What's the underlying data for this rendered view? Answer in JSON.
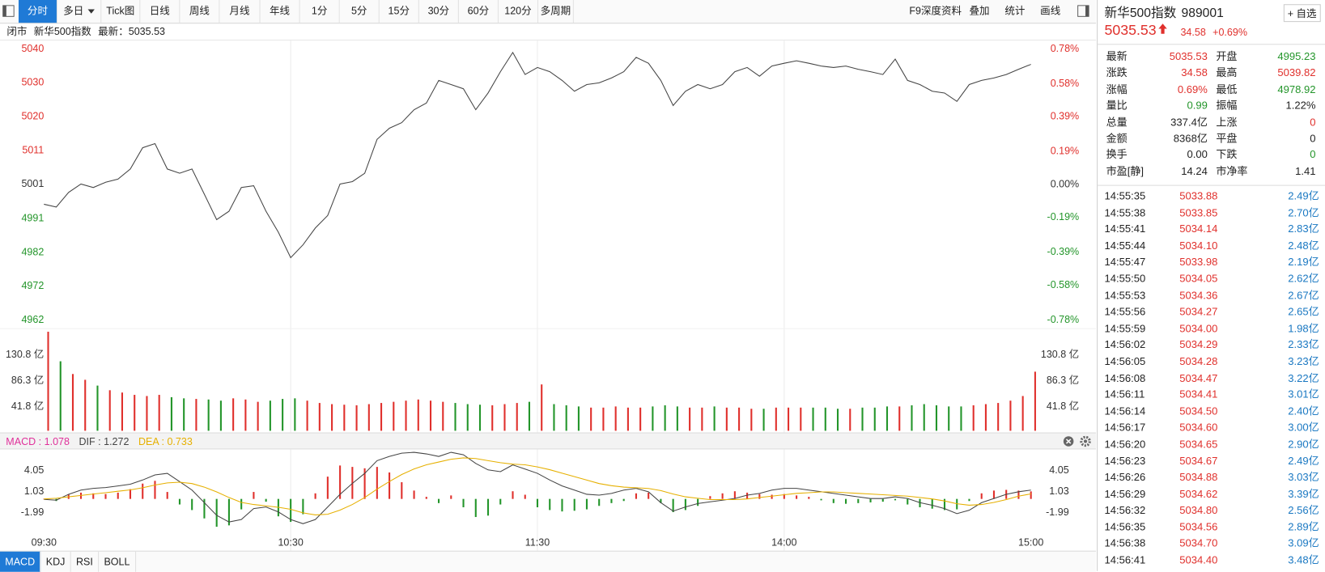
{
  "toolbar": {
    "left": [
      "分时",
      "多日",
      "Tick图",
      "日线",
      "周线",
      "月线",
      "年线",
      "1分",
      "5分",
      "15分",
      "30分",
      "60分",
      "120分",
      "多周期"
    ],
    "right": [
      "F9深度资料",
      "叠加",
      "统计",
      "画线"
    ]
  },
  "status": {
    "state": "闭市",
    "name": "新华500指数",
    "latest": "最新：5035.53"
  },
  "chart_data": [
    {
      "type": "line",
      "color": "#444444",
      "values": [
        4995.3,
        4994.5,
        4998.7,
        5001.1,
        5000.1,
        5001.6,
        5002.5,
        5005.4,
        5011.5,
        5012.7,
        5005.4,
        5004.2,
        5005.4,
        4998.2,
        4990.9,
        4993.3,
        5000.1,
        5000.6,
        4993.3,
        4987.3,
        4980.0,
        4983.7,
        4988.5,
        4992.1,
        5001.1,
        5001.8,
        5004.2,
        5013.9,
        5017.1,
        5018.7,
        5022.4,
        5024.3,
        5030.8,
        5029.6,
        5028.4,
        5022.4,
        5027.2,
        5033.3,
        5038.8,
        5032.5,
        5034.5,
        5033.3,
        5030.8,
        5027.7,
        5029.6,
        5030.1,
        5031.5,
        5033.3,
        5037.4,
        5035.7,
        5030.8,
        5023.6,
        5027.7,
        5029.6,
        5028.4,
        5029.6,
        5033.3,
        5034.5,
        5032.0,
        5034.9,
        5035.7,
        5036.4,
        5035.7,
        5034.9,
        5034.5,
        5034.9,
        5034.0,
        5033.3,
        5032.5,
        5036.9,
        5030.8,
        5029.6,
        5027.7,
        5027.2,
        5024.8,
        5029.6,
        5030.8,
        5031.5,
        5032.5,
        5034.0,
        5035.4
      ],
      "ylim": [
        4962.1,
        5039.8
      ],
      "yticks": [
        {
          "value": 5039.8,
          "label": "5040"
        },
        {
          "value": 5030.1,
          "label": "5030"
        },
        {
          "value": 5020.4,
          "label": "5020"
        },
        {
          "value": 5010.7,
          "label": "5011"
        },
        {
          "value": 5001.0,
          "label": "5001"
        },
        {
          "value": 4991.2,
          "label": "4991"
        },
        {
          "value": 4981.5,
          "label": "4982"
        },
        {
          "value": 4971.8,
          "label": "4972"
        },
        {
          "value": 4962.1,
          "label": "4962"
        }
      ],
      "y2lim": [
        -0.78,
        0.78
      ],
      "y2ticks": [
        {
          "value": 0.78,
          "label": "0.78%"
        },
        {
          "value": 0.58,
          "label": "0.58%"
        },
        {
          "value": 0.39,
          "label": "0.39%"
        },
        {
          "value": 0.19,
          "label": "0.19%"
        },
        {
          "value": 0,
          "label": "0.00%"
        },
        {
          "value": -0.19,
          "label": "-0.19%"
        },
        {
          "value": -0.39,
          "label": "-0.39%"
        },
        {
          "value": -0.58,
          "label": "-0.58%"
        },
        {
          "value": -0.78,
          "label": "-0.78%"
        }
      ],
      "up_color": "#e0302c",
      "down_color": "#23952a",
      "flat_color": "#333333"
    },
    {
      "type": "bar",
      "values": [
        171,
        120,
        98,
        88,
        78,
        70,
        66,
        62,
        60,
        62,
        58,
        56,
        55,
        54,
        52,
        56,
        54,
        50,
        52,
        55,
        56,
        52,
        48,
        46,
        45,
        44,
        46,
        48,
        50,
        52,
        54,
        52,
        50,
        48,
        46,
        45,
        44,
        46,
        48,
        50,
        80,
        46,
        44,
        42,
        40,
        40,
        42,
        40,
        40,
        42,
        44,
        42,
        40,
        40,
        42,
        40,
        40,
        38,
        38,
        40,
        40,
        40,
        40,
        40,
        38,
        38,
        40,
        40,
        42,
        42,
        44,
        46,
        44,
        42,
        42,
        44,
        46,
        48,
        52,
        60,
        102
      ],
      "ylim": [
        0,
        175
      ],
      "yticks": [
        {
          "value": 130.8,
          "label": "130.8 亿"
        },
        {
          "value": 86.3,
          "label": "86.3 亿"
        },
        {
          "value": 41.8,
          "label": "41.8 亿"
        }
      ],
      "up_color": "#e0302c",
      "down_color": "#23952a"
    },
    {
      "type": "combo",
      "xlim": [
        0,
        80
      ],
      "xticks": [
        {
          "value": 0,
          "label": "09:30"
        },
        {
          "value": 20,
          "label": "10:30"
        },
        {
          "value": 40,
          "label": "11:30"
        },
        {
          "value": 60,
          "label": "14:00"
        },
        {
          "value": 80,
          "label": "15:00"
        }
      ],
      "grid": true,
      "ylim": [
        -7.2,
        7.0
      ],
      "yticks": [
        4.05,
        1.03,
        -1.99
      ],
      "up_color": "#e0302c",
      "down_color": "#23952a",
      "series": [
        {
          "name": "MACD : 1.078",
          "color": "#e0309a",
          "style": "bar",
          "values": [
            0,
            -0.3,
            0.6,
            0.9,
            0.8,
            0.7,
            0.9,
            1.4,
            2.2,
            2.6,
            1.0,
            -0.8,
            -1.6,
            -2.8,
            -4.0,
            -3.8,
            -1.5,
            1.0,
            -0.4,
            -2.5,
            -3.3,
            -2.2,
            0.8,
            3.2,
            4.8,
            4.6,
            4.4,
            4.6,
            3.8,
            2.4,
            1.2,
            0.3,
            -0.6,
            0.5,
            -1.2,
            -2.6,
            -2.4,
            -0.8,
            1.1,
            0.6,
            -1.2,
            -1.6,
            -1.8,
            -1.7,
            -1.5,
            -1.0,
            -0.6,
            -0.3,
            0.8,
            0.9,
            -0.6,
            -1.9,
            -1.6,
            -1.0,
            0.4,
            0.8,
            1.1,
            0.9,
            0.7,
            0.6,
            0.7,
            0.5,
            0.3,
            -0.2,
            -0.6,
            -0.7,
            -0.6,
            -0.5,
            -0.4,
            -0.2,
            -0.8,
            -1.2,
            -1.4,
            -1.6,
            -1.5,
            -0.3,
            0.8,
            1.2,
            1.3,
            1.2,
            1.08
          ]
        },
        {
          "name": "DIF : 1.272",
          "color": "#444444",
          "style": "line",
          "values": [
            -0.06,
            -0.18,
            0.66,
            1.27,
            1.51,
            1.63,
            1.87,
            2.11,
            2.72,
            3.44,
            3.68,
            2.48,
            1.27,
            -0.54,
            -2.36,
            -3.32,
            -2.96,
            -1.39,
            -1.15,
            -1.87,
            -2.96,
            -3.56,
            -2.96,
            -1.15,
            0.66,
            2.23,
            3.68,
            5.5,
            6.1,
            6.58,
            6.7,
            6.46,
            6.1,
            6.7,
            6.34,
            5.1,
            4.17,
            3.92,
            4.89,
            4.29,
            3.68,
            2.72,
            1.87,
            1.27,
            0.66,
            0.54,
            0.79,
            1.27,
            1.51,
            1.03,
            -0.54,
            -1.75,
            -1.15,
            -0.66,
            -0.42,
            -0.18,
            0.06,
            0.54,
            0.79,
            1.27,
            1.51,
            1.51,
            1.27,
            1.03,
            0.79,
            0.54,
            0.3,
            0.06,
            0.06,
            0.3,
            0.06,
            -0.54,
            -0.91,
            -1.39,
            -2.11,
            -1.63,
            -0.54,
            0.06,
            0.66,
            1.03,
            1.27
          ]
        },
        {
          "name": "DEA : 0.733",
          "color": "#e6b000",
          "style": "line",
          "values": [
            0,
            0.1,
            0.3,
            0.5,
            0.7,
            0.9,
            1.1,
            1.3,
            1.6,
            2.0,
            2.3,
            2.4,
            2.2,
            1.7,
            1.0,
            0.2,
            -0.5,
            -0.8,
            -1.0,
            -1.2,
            -1.5,
            -2.0,
            -2.3,
            -2.2,
            -1.6,
            -0.8,
            0.2,
            1.4,
            2.5,
            3.5,
            4.3,
            4.9,
            5.3,
            5.7,
            5.9,
            5.8,
            5.5,
            5.2,
            5.0,
            4.9,
            4.6,
            4.2,
            3.7,
            3.2,
            2.7,
            2.2,
            1.9,
            1.7,
            1.6,
            1.5,
            1.2,
            0.7,
            0.3,
            0.1,
            -0.1,
            -0.1,
            -0.1,
            0.0,
            0.2,
            0.4,
            0.6,
            0.8,
            0.9,
            1.0,
            1.0,
            0.9,
            0.8,
            0.7,
            0.6,
            0.5,
            0.4,
            0.2,
            0.0,
            -0.3,
            -0.7,
            -0.9,
            -0.8,
            -0.5,
            -0.1,
            0.4,
            0.73
          ]
        }
      ]
    }
  ],
  "indicator_tabs": [
    "MACD",
    "KDJ",
    "RSI",
    "BOLL"
  ],
  "quote": {
    "name": "新华500指数",
    "code": "989001",
    "add": "+ 自选",
    "price": "5035.53",
    "change": "34.58",
    "percent": "+0.69%",
    "color": "#e0302c"
  },
  "stats": [
    [
      {
        "label": "最新",
        "value": "5035.53",
        "color": "#e0302c"
      },
      {
        "label": "开盘",
        "value": "4995.23",
        "color": "#23952a"
      }
    ],
    [
      {
        "label": "涨跌",
        "value": "34.58",
        "color": "#e0302c"
      },
      {
        "label": "最高",
        "value": "5039.82",
        "color": "#e0302c"
      }
    ],
    [
      {
        "label": "涨幅",
        "value": "0.69%",
        "color": "#e0302c"
      },
      {
        "label": "最低",
        "value": "4978.92",
        "color": "#23952a"
      }
    ],
    [
      {
        "label": "量比",
        "value": "0.99",
        "color": "#23952a"
      },
      {
        "label": "振幅",
        "value": "1.22%",
        "color": "#222222"
      }
    ],
    [
      {
        "label": "总量",
        "value": "337.4亿",
        "color": "#222222"
      },
      {
        "label": "上涨",
        "value": "0",
        "color": "#e0302c"
      }
    ],
    [
      {
        "label": "金额",
        "value": "8368亿",
        "color": "#222222"
      },
      {
        "label": "平盘",
        "value": "0",
        "color": "#222222"
      }
    ],
    [
      {
        "label": "换手",
        "value": "0.00",
        "color": "#222222"
      },
      {
        "label": "下跌",
        "value": "0",
        "color": "#23952a"
      }
    ],
    [
      {
        "label": "市盈[静]",
        "value": "14.24",
        "color": "#222222"
      },
      {
        "label": "市净率",
        "value": "1.41",
        "color": "#222222"
      }
    ]
  ],
  "trades": {
    "price_color": "#e0302c",
    "amount_color": "#1a78c2",
    "rows": [
      [
        "14:55:35",
        "5033.88",
        "2.49亿"
      ],
      [
        "14:55:38",
        "5033.85",
        "2.70亿"
      ],
      [
        "14:55:41",
        "5034.14",
        "2.83亿"
      ],
      [
        "14:55:44",
        "5034.10",
        "2.48亿"
      ],
      [
        "14:55:47",
        "5033.98",
        "2.19亿"
      ],
      [
        "14:55:50",
        "5034.05",
        "2.62亿"
      ],
      [
        "14:55:53",
        "5034.36",
        "2.67亿"
      ],
      [
        "14:55:56",
        "5034.27",
        "2.65亿"
      ],
      [
        "14:55:59",
        "5034.00",
        "1.98亿"
      ],
      [
        "14:56:02",
        "5034.29",
        "2.33亿"
      ],
      [
        "14:56:05",
        "5034.28",
        "3.23亿"
      ],
      [
        "14:56:08",
        "5034.47",
        "3.22亿"
      ],
      [
        "14:56:11",
        "5034.41",
        "3.01亿"
      ],
      [
        "14:56:14",
        "5034.50",
        "2.40亿"
      ],
      [
        "14:56:17",
        "5034.60",
        "3.00亿"
      ],
      [
        "14:56:20",
        "5034.65",
        "2.90亿"
      ],
      [
        "14:56:23",
        "5034.67",
        "2.49亿"
      ],
      [
        "14:56:26",
        "5034.88",
        "3.03亿"
      ],
      [
        "14:56:29",
        "5034.62",
        "3.39亿"
      ],
      [
        "14:56:32",
        "5034.80",
        "2.56亿"
      ],
      [
        "14:56:35",
        "5034.56",
        "2.89亿"
      ],
      [
        "14:56:38",
        "5034.70",
        "3.09亿"
      ],
      [
        "14:56:41",
        "5034.40",
        "3.48亿"
      ]
    ]
  }
}
